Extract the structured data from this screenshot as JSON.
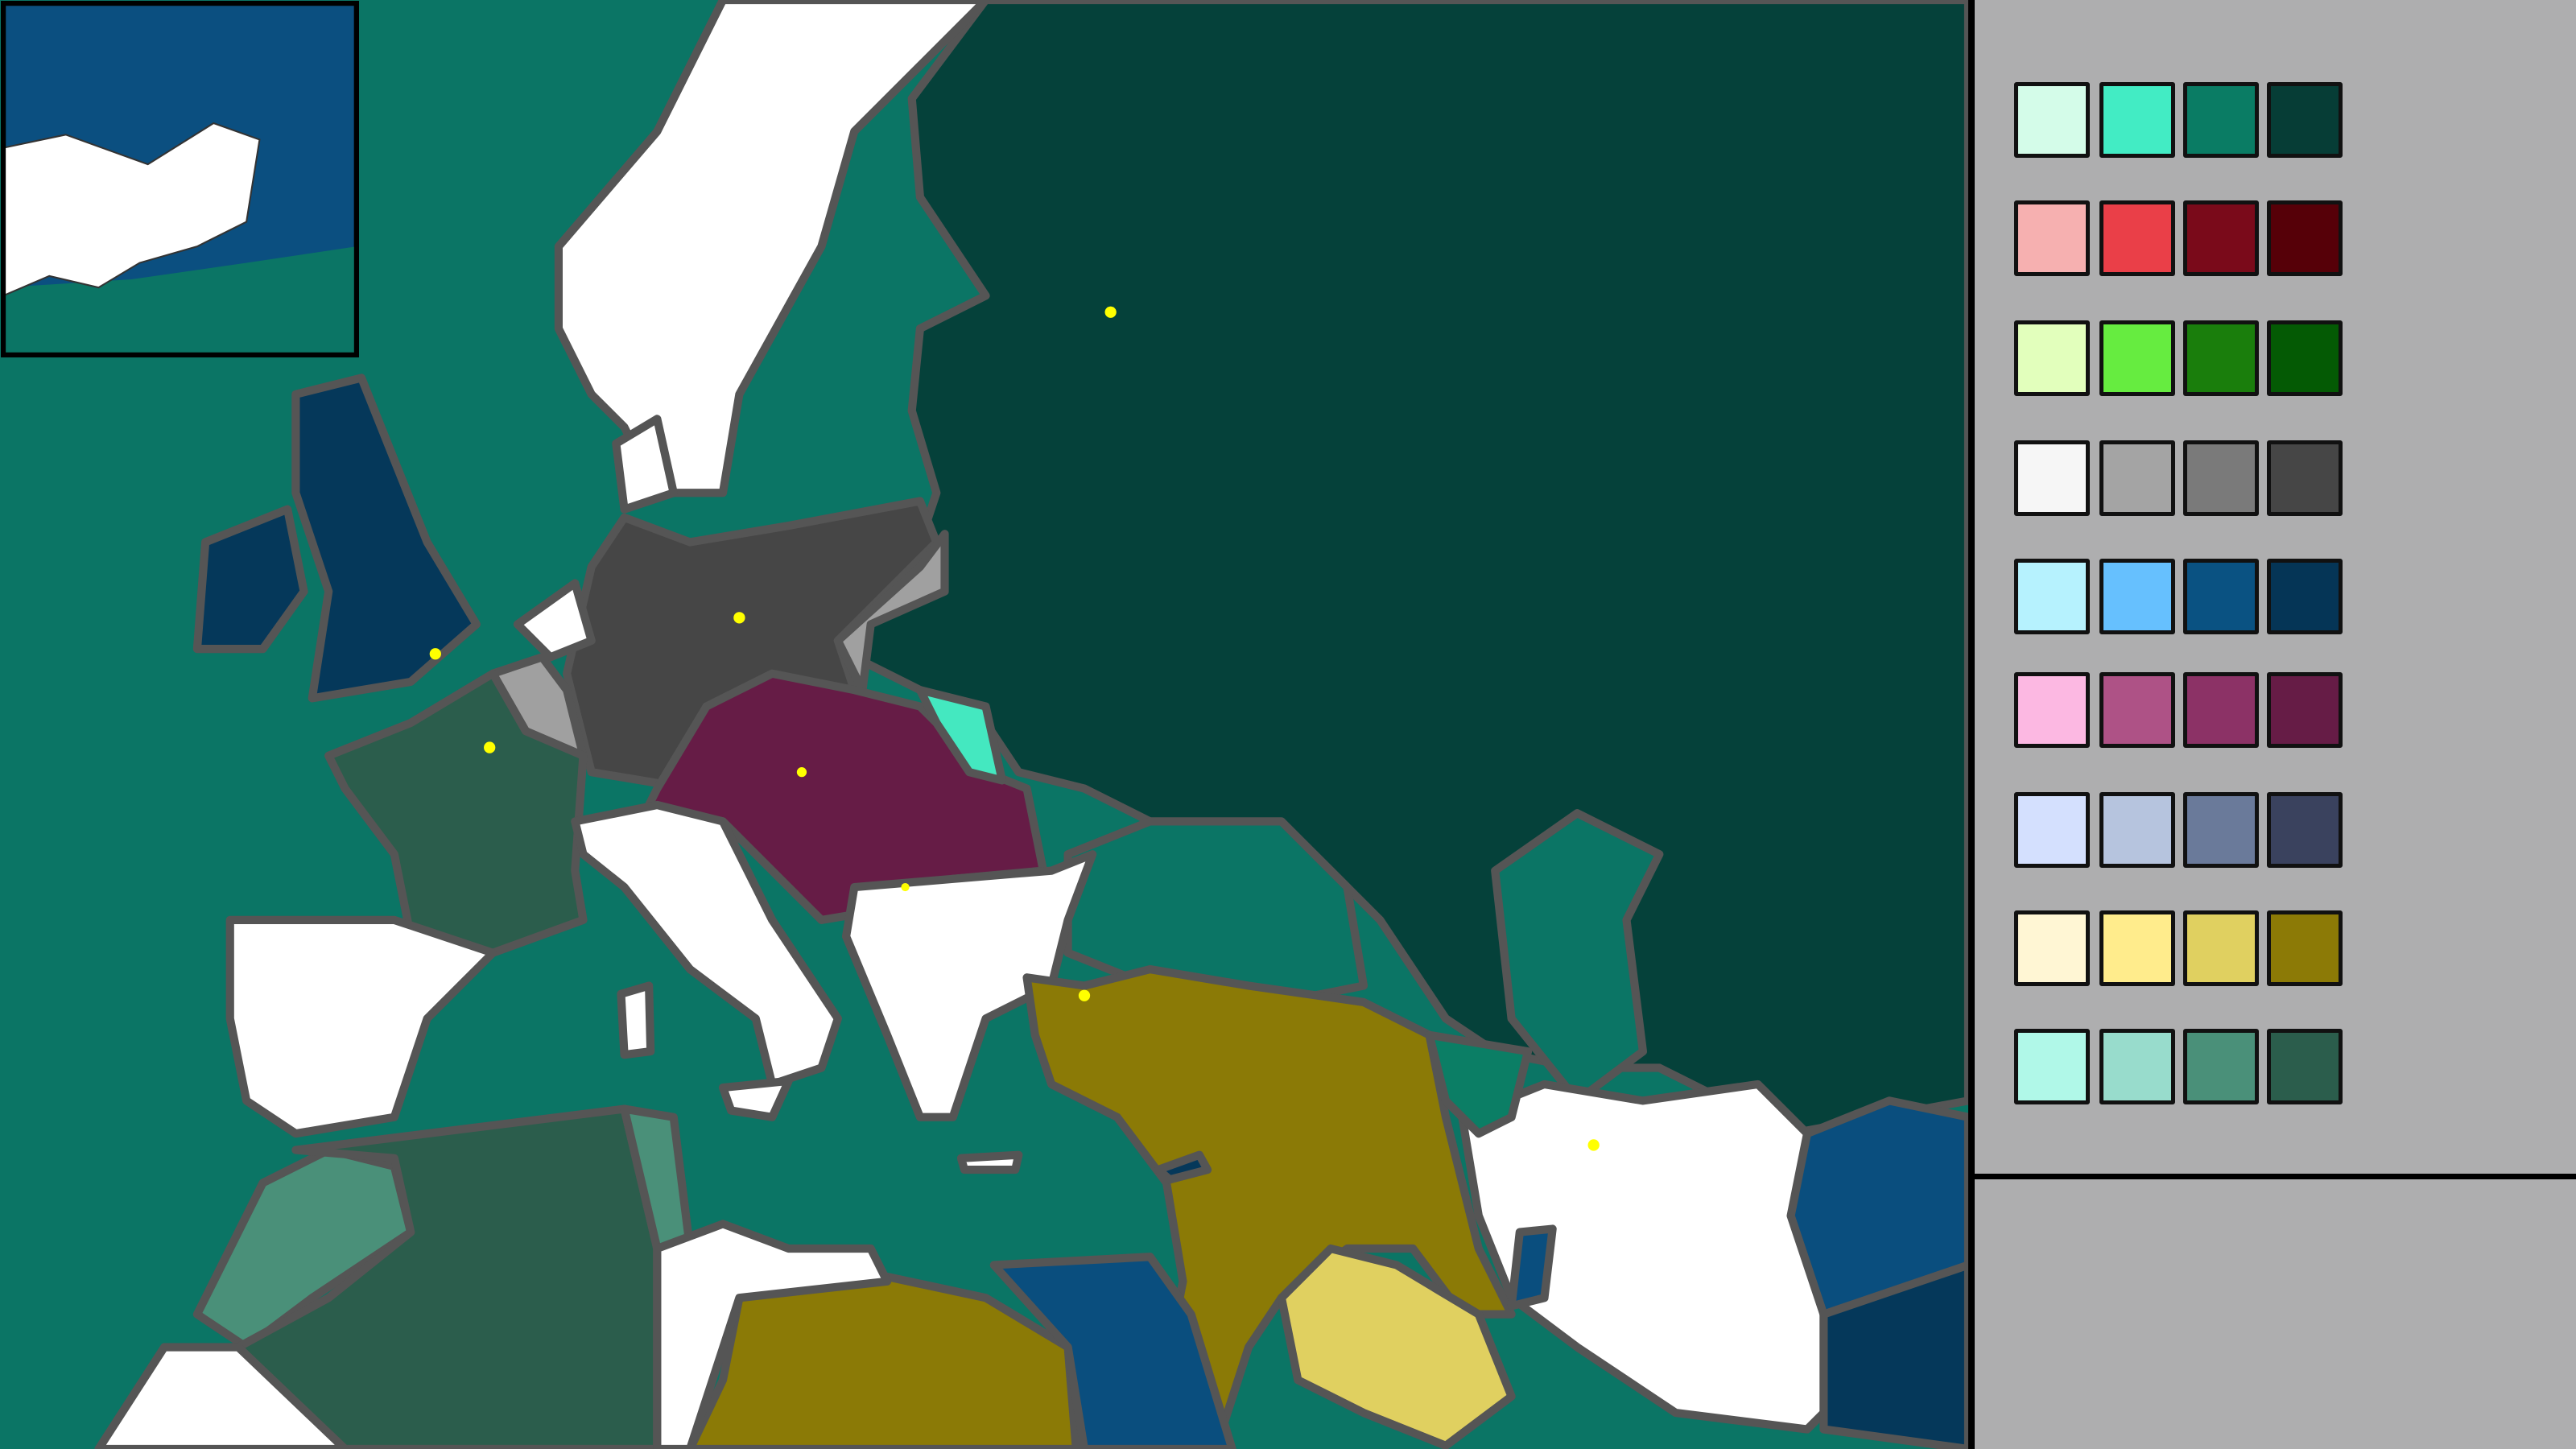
{
  "sea_color": "#0b7565",
  "panel_color": "#aeaeaf",
  "capital_color": "#ffff00",
  "map": {
    "colors": {
      "russia": "#05413a",
      "scandinavia": "#ffffff",
      "britain": "#05385a",
      "germany": "#464646",
      "poland": "#a0a0a0",
      "austria_hungary": "#661c46",
      "galicia": "#44e8c0",
      "france": "#2b5d4c",
      "italy": "#ffffff",
      "iberia": "#ffffff",
      "balkans": "#ffffff",
      "ottoman": "#8b7a06",
      "persia": "#ffffff",
      "afghanistan": "#0a4e7e",
      "baluchistan": "#05385a",
      "hejaz": "#e0d060",
      "egypt": "#0a4e7e",
      "morocco": "#4a9079",
      "algeria": "#2b5d4c",
      "tunisia": "#4a9079",
      "georgia": "#0b7e65",
      "minimap_sea": "#0b4f80"
    }
  },
  "palette": [
    [
      "#d4fce9",
      "#42ecc4",
      "#0a7c64",
      "#063d36"
    ],
    [
      "#f6b0b0",
      "#ea3f48",
      "#7a0a1a",
      "#560008"
    ],
    [
      "#e2ffbc",
      "#66ec40",
      "#1a7e0c",
      "#045a04"
    ],
    [
      "#f6f6f6",
      "#a4a4a4",
      "#7a7a7a",
      "#464646"
    ],
    [
      "#b6f2fe",
      "#66c0fe",
      "#0a5282",
      "#053556"
    ],
    [
      "#fcb8e2",
      "#ae5286",
      "#8c3266",
      "#661c46"
    ],
    [
      "#d4e0fe",
      "#b6c4de",
      "#6a7a9a",
      "#3a425e"
    ],
    [
      "#fff6d4",
      "#ffec8c",
      "#e0d060",
      "#8c7a06"
    ],
    [
      "#b0f8e8",
      "#98dccc",
      "#4a9079",
      "#2b5d4c"
    ]
  ]
}
